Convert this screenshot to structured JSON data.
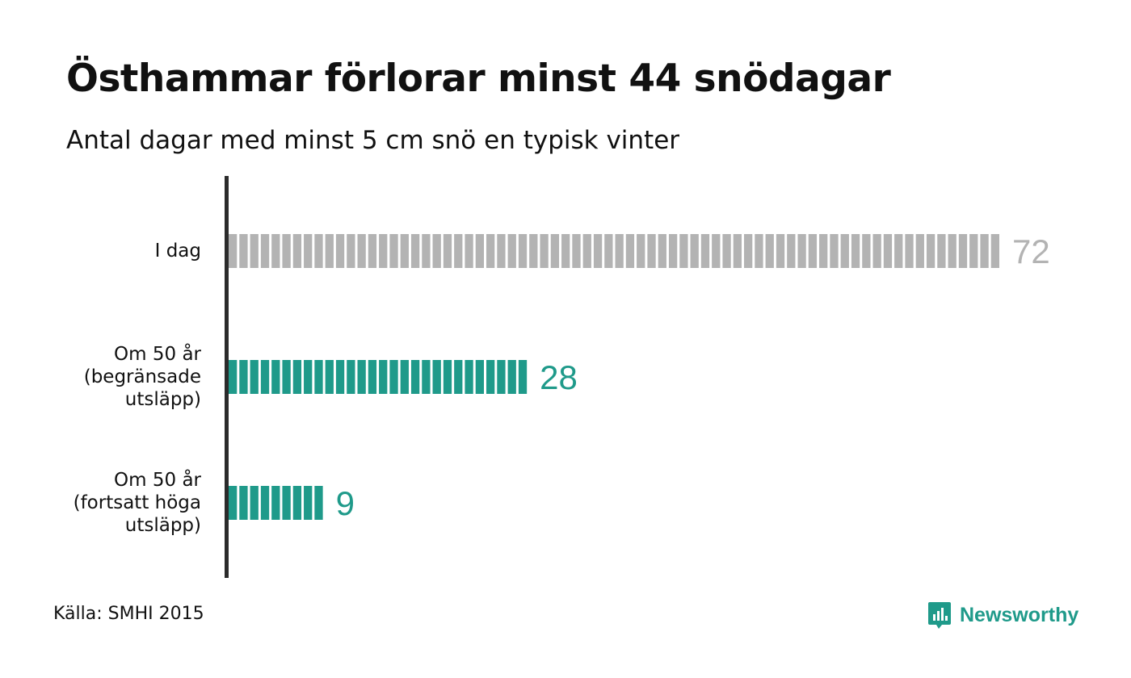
{
  "title": "Östhammar förlorar minst 44 snödagar",
  "subtitle": "Antal dagar med minst 5 cm snö en typisk vinter",
  "source": "Källa: SMHI 2015",
  "brand": "Newsworthy",
  "colors": {
    "today": "#b3b3b3",
    "future": "#1f9a8a",
    "axis": "#2b2b2b",
    "brand": "#1f9a8a"
  },
  "chart_data": {
    "type": "bar",
    "orientation": "horizontal",
    "style": "pictogram (one segment per day)",
    "categories": [
      [
        "I dag"
      ],
      [
        "Om 50 år",
        "(begränsade",
        "utsläpp)"
      ],
      [
        "Om 50 år",
        "(fortsatt höga",
        "utsläpp)"
      ]
    ],
    "values": [
      72,
      28,
      9
    ],
    "value_labels": [
      "72",
      "28",
      "9"
    ],
    "bar_colors": [
      "#b3b3b3",
      "#1f9a8a",
      "#1f9a8a"
    ],
    "title": "Östhammar förlorar minst 44 snödagar",
    "subtitle": "Antal dagar med minst 5 cm snö en typisk vinter",
    "xlabel": "",
    "ylabel": "",
    "xlim": [
      0,
      72
    ],
    "grid": false,
    "legend": false
  }
}
